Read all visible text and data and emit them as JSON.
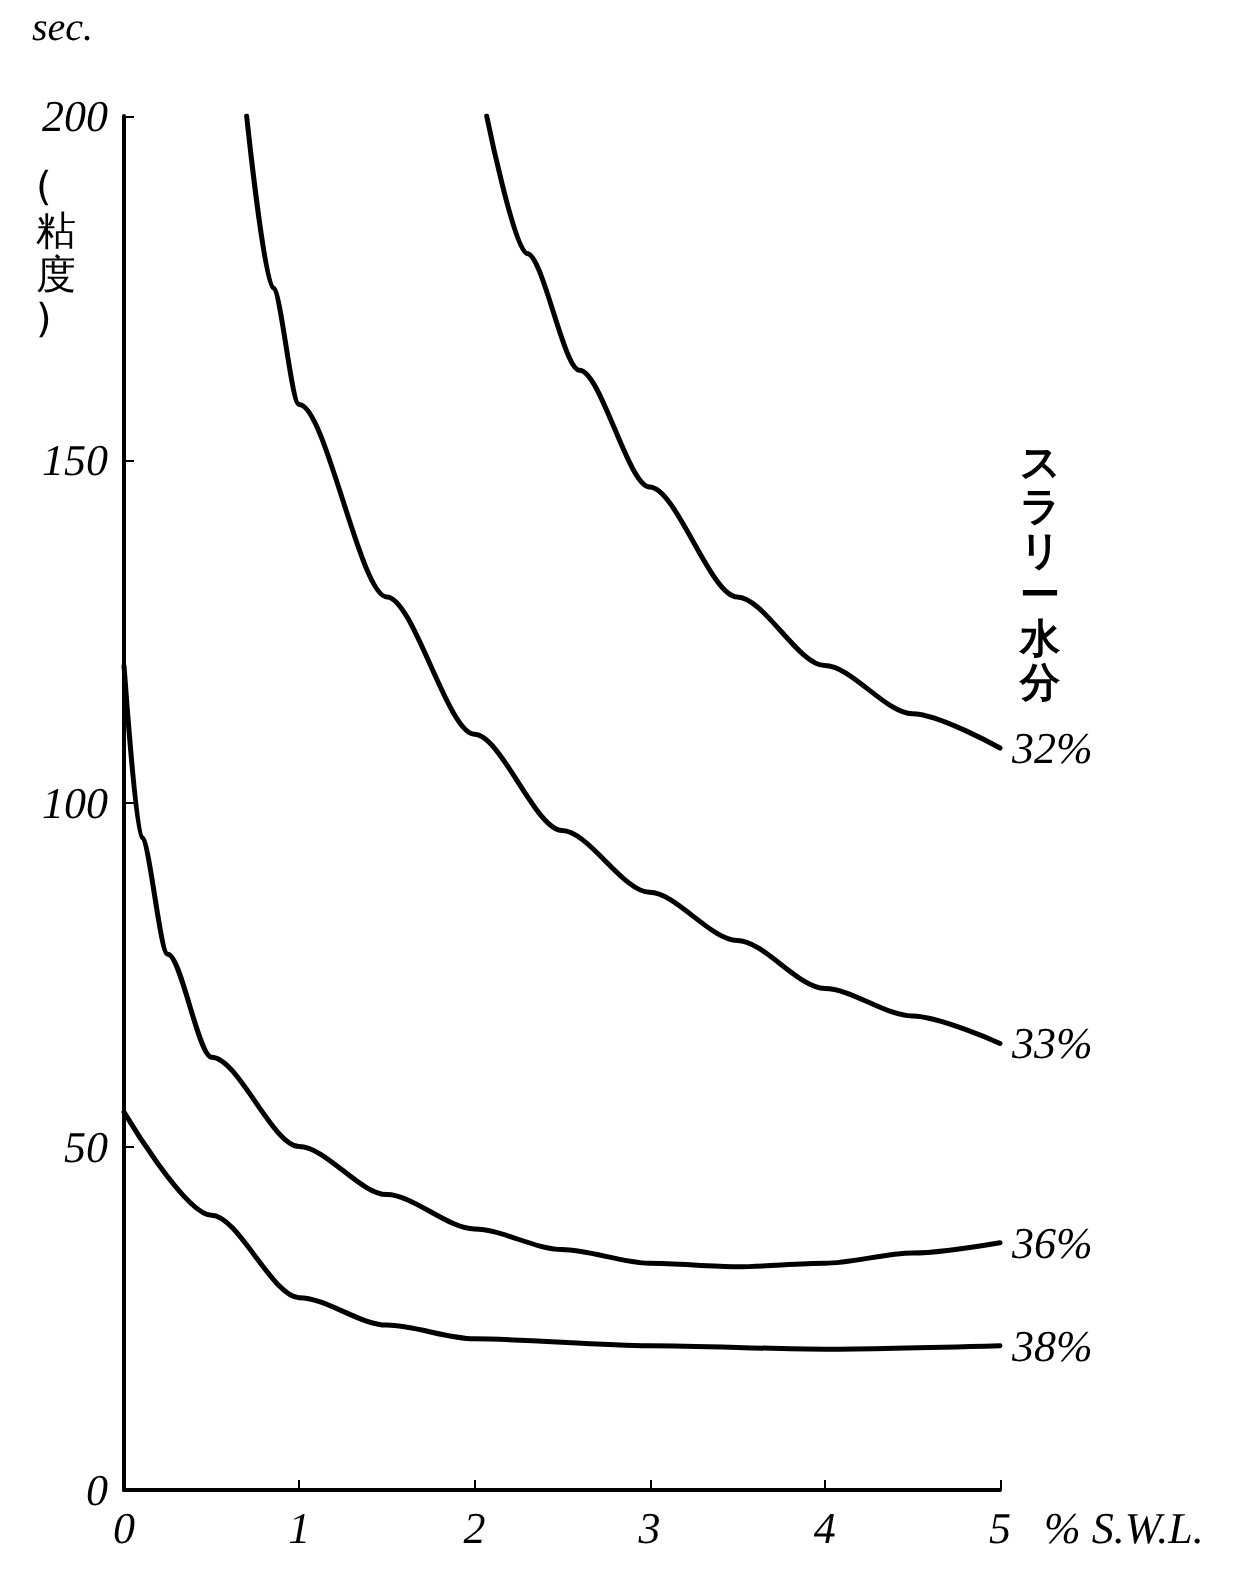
{
  "chart_data": {
    "type": "line",
    "xlabel": "% S.W.L.",
    "ylabel": "(粘度)",
    "legend_title": "スラリー水分",
    "annotations": [
      "sec."
    ],
    "xlim": [
      0,
      5
    ],
    "xticks": [
      0,
      1,
      2,
      3,
      4,
      5
    ],
    "ylim": [
      0,
      200
    ],
    "yticks": [
      0,
      50,
      100,
      150,
      200
    ],
    "grid": false,
    "legend": false,
    "marker": "none",
    "line_style": "solid",
    "series": [
      {
        "name": "32%",
        "color": "#000000",
        "x": [
          2.07,
          2.3,
          2.6,
          3,
          3.5,
          4,
          4.5,
          5
        ],
        "values": [
          200,
          180,
          163,
          146,
          130,
          120,
          113,
          108
        ]
      },
      {
        "name": "33%",
        "color": "#000000",
        "x": [
          0.7,
          0.85,
          1,
          1.5,
          2,
          2.5,
          3,
          3.5,
          4,
          4.5,
          5
        ],
        "values": [
          200,
          175,
          158,
          130,
          110,
          96,
          87,
          80,
          73,
          69,
          65
        ]
      },
      {
        "name": "36%",
        "color": "#000000",
        "x": [
          0,
          0.1,
          0.25,
          0.5,
          1,
          1.5,
          2,
          2.5,
          3,
          3.5,
          4,
          4.5,
          5
        ],
        "values": [
          120,
          95,
          78,
          63,
          50,
          43,
          38,
          35,
          33,
          32.5,
          33,
          34.5,
          36
        ]
      },
      {
        "name": "38%",
        "color": "#000000",
        "x": [
          0,
          0.5,
          1,
          1.5,
          2,
          3,
          4,
          5
        ],
        "values": [
          55,
          40,
          28,
          24,
          22,
          21,
          20.5,
          21
        ]
      }
    ]
  }
}
